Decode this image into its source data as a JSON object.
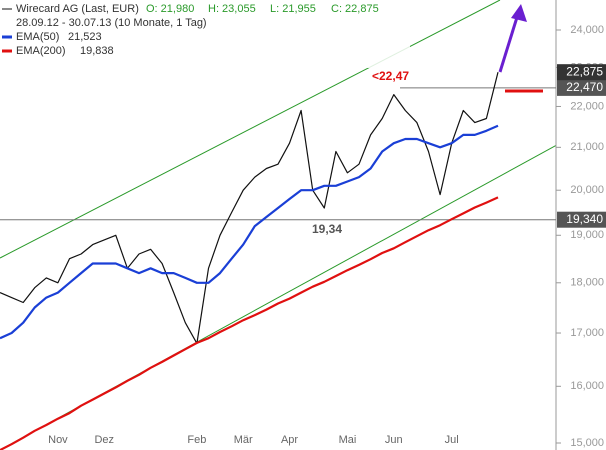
{
  "chart_data": {
    "type": "line",
    "header": {
      "title": "Wirecard AG (Last, EUR)",
      "open": "O: 21,980",
      "high": "H: 23,055",
      "low": "L: 21,955",
      "close": "C: 22,875",
      "period": "28.09.12 - 30.07.13 (10 Monate, 1 Tag)"
    },
    "categories": [
      null,
      null,
      null,
      null,
      null,
      "Nov",
      null,
      null,
      null,
      "Dez",
      null,
      null,
      null,
      null,
      null,
      null,
      null,
      "Feb",
      null,
      null,
      null,
      "Mär",
      null,
      null,
      null,
      "Apr",
      null,
      null,
      null,
      null,
      "Mai",
      null,
      null,
      null,
      "Jun",
      null,
      null,
      null,
      null,
      "Jul",
      null,
      null,
      null,
      null
    ],
    "series": [
      {
        "name": "Wirecard AG",
        "color": "#111111",
        "values": [
          17.8,
          17.7,
          17.6,
          17.9,
          18.1,
          18.0,
          18.5,
          18.6,
          18.8,
          18.9,
          19.0,
          18.3,
          18.6,
          18.7,
          18.4,
          17.8,
          17.2,
          16.8,
          18.3,
          19.0,
          19.5,
          20.0,
          20.3,
          20.5,
          20.6,
          21.1,
          21.9,
          20.0,
          19.6,
          20.9,
          20.4,
          20.6,
          21.3,
          21.7,
          22.3,
          21.9,
          21.6,
          20.9,
          19.9,
          21.1,
          21.9,
          21.6,
          21.7,
          22.875
        ]
      },
      {
        "name": "EMA(50)",
        "legend_value": "21,523",
        "color": "#1a3fd6",
        "values": [
          16.9,
          17.0,
          17.2,
          17.5,
          17.7,
          17.8,
          18.0,
          18.2,
          18.4,
          18.4,
          18.4,
          18.3,
          18.2,
          18.3,
          18.2,
          18.2,
          18.1,
          18.0,
          18.0,
          18.2,
          18.5,
          18.8,
          19.2,
          19.4,
          19.6,
          19.8,
          20.0,
          20.0,
          20.1,
          20.1,
          20.2,
          20.3,
          20.5,
          20.9,
          21.1,
          21.2,
          21.2,
          21.1,
          21.0,
          21.1,
          21.3,
          21.3,
          21.4,
          21.523
        ]
      },
      {
        "name": "EMA(200)",
        "legend_value": "19,838",
        "color": "#e01010",
        "values": [
          14.88,
          14.98,
          15.09,
          15.21,
          15.31,
          15.42,
          15.52,
          15.65,
          15.76,
          15.87,
          15.98,
          16.1,
          16.21,
          16.34,
          16.45,
          16.57,
          16.69,
          16.81,
          16.9,
          17.02,
          17.13,
          17.25,
          17.35,
          17.46,
          17.58,
          17.68,
          17.8,
          17.92,
          18.02,
          18.14,
          18.26,
          18.37,
          18.49,
          18.62,
          18.72,
          18.85,
          18.98,
          19.11,
          19.22,
          19.35,
          19.48,
          19.61,
          19.72,
          19.838
        ]
      }
    ],
    "log_scale": true,
    "ylim": [
      15,
      24
    ],
    "yticks": [
      {
        "value": 15,
        "label": "15,000"
      },
      {
        "value": 16,
        "label": "16,000"
      },
      {
        "value": 17,
        "label": "17,000"
      },
      {
        "value": 18,
        "label": "18,000"
      },
      {
        "value": 19,
        "label": "19,000"
      },
      {
        "value": 20,
        "label": "20,000"
      },
      {
        "value": 21,
        "label": "21,000"
      },
      {
        "value": 22,
        "label": "22,000"
      },
      {
        "value": 23,
        "label": "23,000"
      },
      {
        "value": 24,
        "label": "24,000"
      }
    ],
    "last_price": {
      "value": 22.875,
      "label": "22,875"
    },
    "levels": [
      {
        "value": 22.47,
        "label": "22,470",
        "annotation": "<22,47"
      },
      {
        "value": 19.34,
        "label": "19,340",
        "annotation": "19,34"
      }
    ]
  }
}
